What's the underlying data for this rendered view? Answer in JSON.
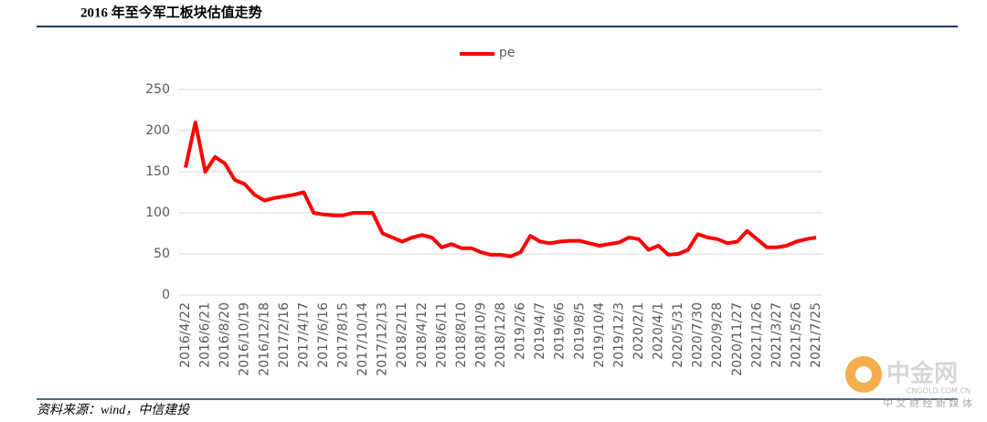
{
  "header": {
    "title": "2016 年至今军工板块估值走势"
  },
  "chart_data": {
    "type": "line",
    "categories": [
      "2016/4/22",
      null,
      "2016/6/21",
      null,
      "2016/8/20",
      null,
      "2016/10/19",
      null,
      "2016/12/18",
      null,
      "2017/2/16",
      null,
      "2017/4/17",
      null,
      "2017/6/16",
      null,
      "2017/8/15",
      null,
      "2017/10/14",
      null,
      "2017/12/13",
      null,
      "2018/2/11",
      null,
      "2018/4/12",
      null,
      "2018/6/11",
      null,
      "2018/8/10",
      null,
      "2018/10/9",
      null,
      "2018/12/8",
      null,
      "2019/2/6",
      null,
      "2019/4/7",
      null,
      "2019/6/6",
      null,
      "2019/8/5",
      null,
      "2019/10/4",
      null,
      "2019/12/3",
      null,
      "2020/2/1",
      null,
      "2020/4/1",
      null,
      "2020/5/31",
      null,
      "2020/7/30",
      null,
      "2020/9/28",
      null,
      "2020/11/27",
      null,
      "2021/1/26",
      null,
      "2021/3/27",
      null,
      "2021/5/26",
      null,
      "2021/7/25"
    ],
    "series": [
      {
        "name": "pe",
        "color": "#ff0000",
        "values": [
          155,
          210,
          150,
          168,
          160,
          140,
          135,
          122,
          115,
          118,
          120,
          122,
          125,
          100,
          98,
          97,
          97,
          100,
          100,
          100,
          75,
          70,
          65,
          70,
          73,
          70,
          58,
          62,
          57,
          57,
          52,
          49,
          49,
          47,
          52,
          72,
          65,
          63,
          65,
          66,
          66,
          63,
          60,
          62,
          64,
          70,
          68,
          55,
          60,
          49,
          50,
          55,
          74,
          70,
          68,
          63,
          65,
          78,
          68,
          58,
          58,
          60,
          65,
          68,
          70
        ]
      }
    ],
    "ylim": [
      0,
      250
    ],
    "yticks": [
      0,
      50,
      100,
      150,
      200,
      250
    ],
    "grid": true,
    "legend": "top"
  },
  "footer": {
    "source": "资料来源：wind，中信建投"
  },
  "watermark": {
    "name": "中金网",
    "url": "CNGOLD.COM.CN",
    "slogan": "中 文 财 经 新 媒 体"
  }
}
